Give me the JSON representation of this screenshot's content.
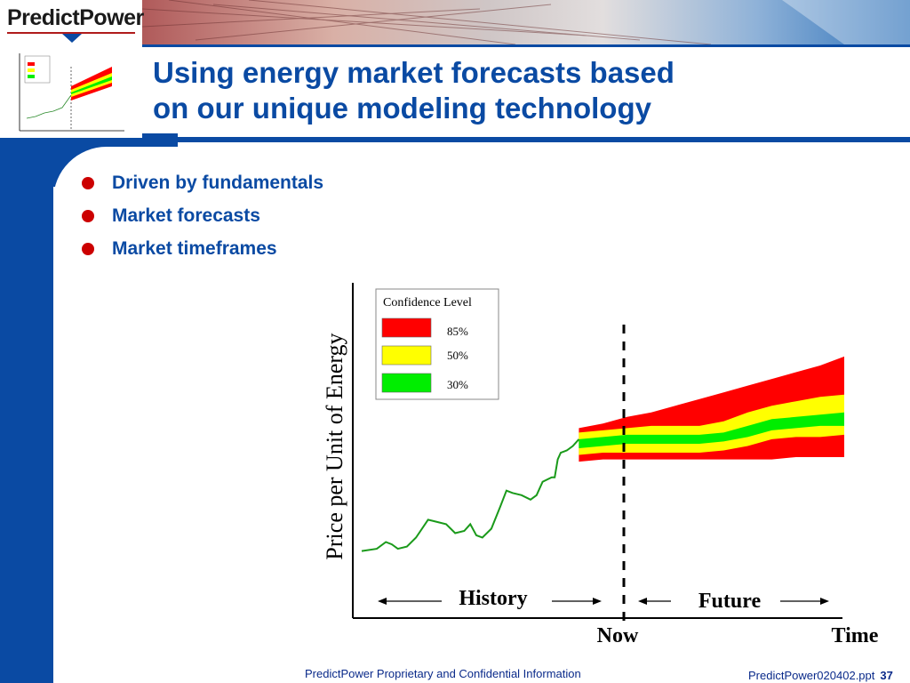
{
  "logo": {
    "text": "PredictPower"
  },
  "title": {
    "line1": "Using energy market forecasts based",
    "line2": "on our unique modeling technology"
  },
  "bullets": [
    {
      "label": "Driven by fundamentals"
    },
    {
      "label": "Market forecasts"
    },
    {
      "label": "Market timeframes"
    }
  ],
  "chart_data": {
    "type": "area",
    "ylabel": "Price per Unit of Energy",
    "xlabel": "Time",
    "now_label": "Now",
    "history_label": "History",
    "future_label": "Future",
    "legend_title": "Confidence Level",
    "legend": [
      {
        "label": "85%",
        "color": "#ff0000"
      },
      {
        "label": "50%",
        "color": "#ffff00"
      },
      {
        "label": "30%",
        "color": "#00ee00"
      }
    ],
    "history": [
      [
        0,
        30
      ],
      [
        5,
        31
      ],
      [
        8,
        34
      ],
      [
        10,
        33
      ],
      [
        12,
        31
      ],
      [
        15,
        32
      ],
      [
        18,
        36
      ],
      [
        22,
        44
      ],
      [
        25,
        43
      ],
      [
        28,
        42
      ],
      [
        31,
        38
      ],
      [
        34,
        39
      ],
      [
        36,
        42
      ],
      [
        38,
        37
      ],
      [
        40,
        36
      ],
      [
        43,
        40
      ],
      [
        46,
        50
      ],
      [
        48,
        57
      ],
      [
        50,
        56
      ],
      [
        53,
        55
      ],
      [
        56,
        53
      ],
      [
        58,
        55
      ],
      [
        60,
        61
      ],
      [
        63,
        63
      ],
      [
        64,
        63
      ],
      [
        65,
        71
      ],
      [
        66,
        74
      ],
      [
        68,
        75
      ],
      [
        70,
        77
      ],
      [
        72,
        80
      ]
    ],
    "future_x": [
      72,
      80,
      88,
      96,
      104,
      112,
      120,
      128,
      136,
      144,
      152,
      160
    ],
    "band_85_upper": [
      85,
      87,
      90,
      92,
      95,
      98,
      101,
      104,
      107,
      110,
      113,
      117
    ],
    "band_50_upper": [
      83,
      84,
      85,
      86,
      86,
      86,
      88,
      92,
      95,
      97,
      99,
      100
    ],
    "band_30_upper": [
      80,
      81,
      82,
      82,
      82,
      82,
      83,
      86,
      89,
      90,
      91,
      92
    ],
    "band_30_lower": [
      76,
      77,
      78,
      78,
      78,
      78,
      79,
      81,
      84,
      85,
      86,
      86
    ],
    "band_50_lower": [
      73,
      74,
      74,
      74,
      74,
      74,
      75,
      77,
      80,
      81,
      81,
      82
    ],
    "band_85_lower": [
      70,
      71,
      71,
      71,
      71,
      71,
      71,
      71,
      71,
      72,
      72,
      72
    ]
  },
  "footer": {
    "center": "PredictPower Proprietary and Confidential Information",
    "file": "PredictPower020402.ppt",
    "page": "37"
  }
}
